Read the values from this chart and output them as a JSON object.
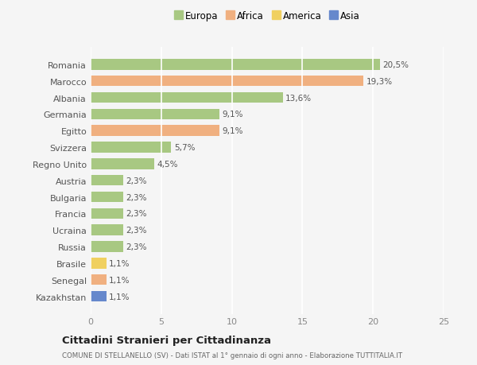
{
  "countries": [
    "Romania",
    "Marocco",
    "Albania",
    "Germania",
    "Egitto",
    "Svizzera",
    "Regno Unito",
    "Austria",
    "Bulgaria",
    "Francia",
    "Ucraina",
    "Russia",
    "Brasile",
    "Senegal",
    "Kazakhstan"
  ],
  "values": [
    20.5,
    19.3,
    13.6,
    9.1,
    9.1,
    5.7,
    4.5,
    2.3,
    2.3,
    2.3,
    2.3,
    2.3,
    1.1,
    1.1,
    1.1
  ],
  "labels": [
    "20,5%",
    "19,3%",
    "13,6%",
    "9,1%",
    "9,1%",
    "5,7%",
    "4,5%",
    "2,3%",
    "2,3%",
    "2,3%",
    "2,3%",
    "2,3%",
    "1,1%",
    "1,1%",
    "1,1%"
  ],
  "continents": [
    "Europa",
    "Africa",
    "Europa",
    "Europa",
    "Africa",
    "Europa",
    "Europa",
    "Europa",
    "Europa",
    "Europa",
    "Europa",
    "Europa",
    "America",
    "Africa",
    "Asia"
  ],
  "colors": {
    "Europa": "#a8c882",
    "Africa": "#f0b080",
    "America": "#f0d060",
    "Asia": "#6688cc"
  },
  "xlim": [
    0,
    25
  ],
  "xticks": [
    0,
    5,
    10,
    15,
    20,
    25
  ],
  "title": "Cittadini Stranieri per Cittadinanza",
  "subtitle": "COMUNE DI STELLANELLO (SV) - Dati ISTAT al 1° gennaio di ogni anno - Elaborazione TUTTITALIA.IT",
  "background_color": "#f5f5f5",
  "grid_color": "#ffffff",
  "bar_height": 0.65,
  "legend_order": [
    "Europa",
    "Africa",
    "America",
    "Asia"
  ]
}
